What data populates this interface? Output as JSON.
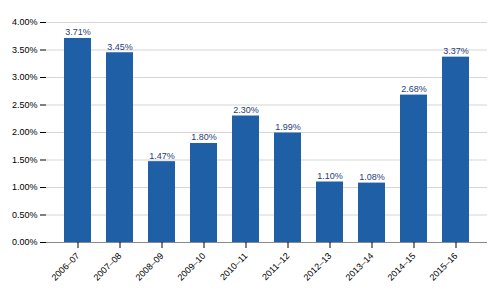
{
  "chart_data": {
    "type": "bar",
    "categories": [
      "2006–07",
      "2007–08",
      "2008–09",
      "2009–10",
      "2010–11",
      "2011–12",
      "2012–13",
      "2013–14",
      "2014–15",
      "2015–16"
    ],
    "values": [
      3.71,
      3.45,
      1.47,
      1.8,
      2.3,
      1.99,
      1.1,
      1.08,
      2.68,
      3.37
    ],
    "value_labels": [
      "3.71%",
      "3.45%",
      "1.47%",
      "1.80%",
      "2.30%",
      "1.99%",
      "1.10%",
      "1.08%",
      "2.68%",
      "3.37%"
    ],
    "data_labels": true,
    "color": "#1f5fa6",
    "ylim": [
      0,
      4.0
    ],
    "yticks": [
      {
        "value": 0.0,
        "label": "0.00%"
      },
      {
        "value": 0.5,
        "label": "0.50%"
      },
      {
        "value": 1.0,
        "label": "1.00%"
      },
      {
        "value": 1.5,
        "label": "1.50%"
      },
      {
        "value": 2.0,
        "label": "2.00%"
      },
      {
        "value": 2.5,
        "label": "2.50%"
      },
      {
        "value": 3.0,
        "label": "3.00%"
      },
      {
        "value": 3.5,
        "label": "3.50%"
      },
      {
        "value": 4.0,
        "label": "4.00%"
      }
    ],
    "grid": true
  }
}
